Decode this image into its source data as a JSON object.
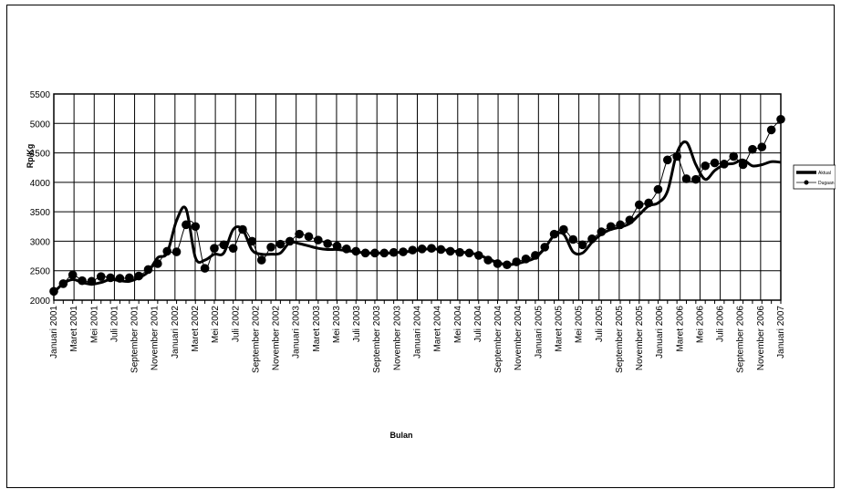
{
  "chart_data": {
    "type": "line",
    "xlabel": "Bulan",
    "ylabel": "Rp/Kg",
    "ylim": [
      2000,
      5500
    ],
    "yticks": [
      2000,
      2500,
      3000,
      3500,
      4000,
      4500,
      5000,
      5500
    ],
    "grid": true,
    "legend_position": "right",
    "x_tick_labels": [
      "Januari 2001",
      "Maret 2001",
      "Mei 2001",
      "Juli 2001",
      "September 2001",
      "November 2001",
      "Januari 2002",
      "Maret 2002",
      "Mei 2002",
      "Juli 2002",
      "September 2002",
      "November 2002",
      "Januari 2003",
      "Maret 2003",
      "Mei 2003",
      "Juli 2003",
      "September 2003",
      "November 2003",
      "Januari 2004",
      "Maret 2004",
      "Mei 2004",
      "Juli 2004",
      "September 2004",
      "November 2004",
      "Januari 2005",
      "Maret 2005",
      "Mei 2005",
      "Juli 2005",
      "September 2005",
      "November 2005",
      "Januari 2006",
      "Maret 2006",
      "Mei 2006",
      "Juli 2006",
      "September 2006",
      "November 2006",
      "Januari 2007"
    ],
    "series": [
      {
        "name": "Aktual",
        "color": "#000000",
        "style": "thick-smooth-line",
        "values": [
          2130,
          2280,
          2350,
          2300,
          2270,
          2300,
          2350,
          2330,
          2320,
          2380,
          2480,
          2720,
          2800,
          3350,
          3550,
          2720,
          2680,
          2780,
          2800,
          3200,
          3200,
          2850,
          2780,
          2780,
          2800,
          2980,
          2960,
          2920,
          2880,
          2860,
          2860,
          2840,
          2820,
          2800,
          2800,
          2800,
          2800,
          2820,
          2830,
          2860,
          2870,
          2860,
          2840,
          2820,
          2800,
          2770,
          2700,
          2640,
          2600,
          2620,
          2660,
          2720,
          2880,
          3100,
          3120,
          2820,
          2800,
          2980,
          3120,
          3200,
          3240,
          3300,
          3450,
          3600,
          3650,
          3850,
          4500,
          4680,
          4300,
          4050,
          4200,
          4300,
          4320,
          4380,
          4280,
          4300,
          4350,
          4340
        ]
      },
      {
        "name": "Dugaan",
        "color": "#000000",
        "style": "thin-line-dots",
        "values": [
          2150,
          2280,
          2430,
          2330,
          2320,
          2400,
          2380,
          2370,
          2380,
          2410,
          2520,
          2620,
          2830,
          2820,
          3280,
          3250,
          2540,
          2880,
          2940,
          2880,
          3200,
          3000,
          2680,
          2900,
          2950,
          3000,
          3120,
          3080,
          3020,
          2960,
          2920,
          2870,
          2830,
          2800,
          2800,
          2800,
          2810,
          2820,
          2850,
          2870,
          2880,
          2860,
          2830,
          2810,
          2800,
          2760,
          2680,
          2620,
          2600,
          2650,
          2700,
          2760,
          2900,
          3120,
          3200,
          3030,
          2940,
          3040,
          3160,
          3250,
          3280,
          3360,
          3620,
          3650,
          3880,
          4380,
          4440,
          4060,
          4050,
          4280,
          4330,
          4310,
          4440,
          4300,
          4560,
          4600,
          4890,
          5070
        ]
      }
    ]
  }
}
